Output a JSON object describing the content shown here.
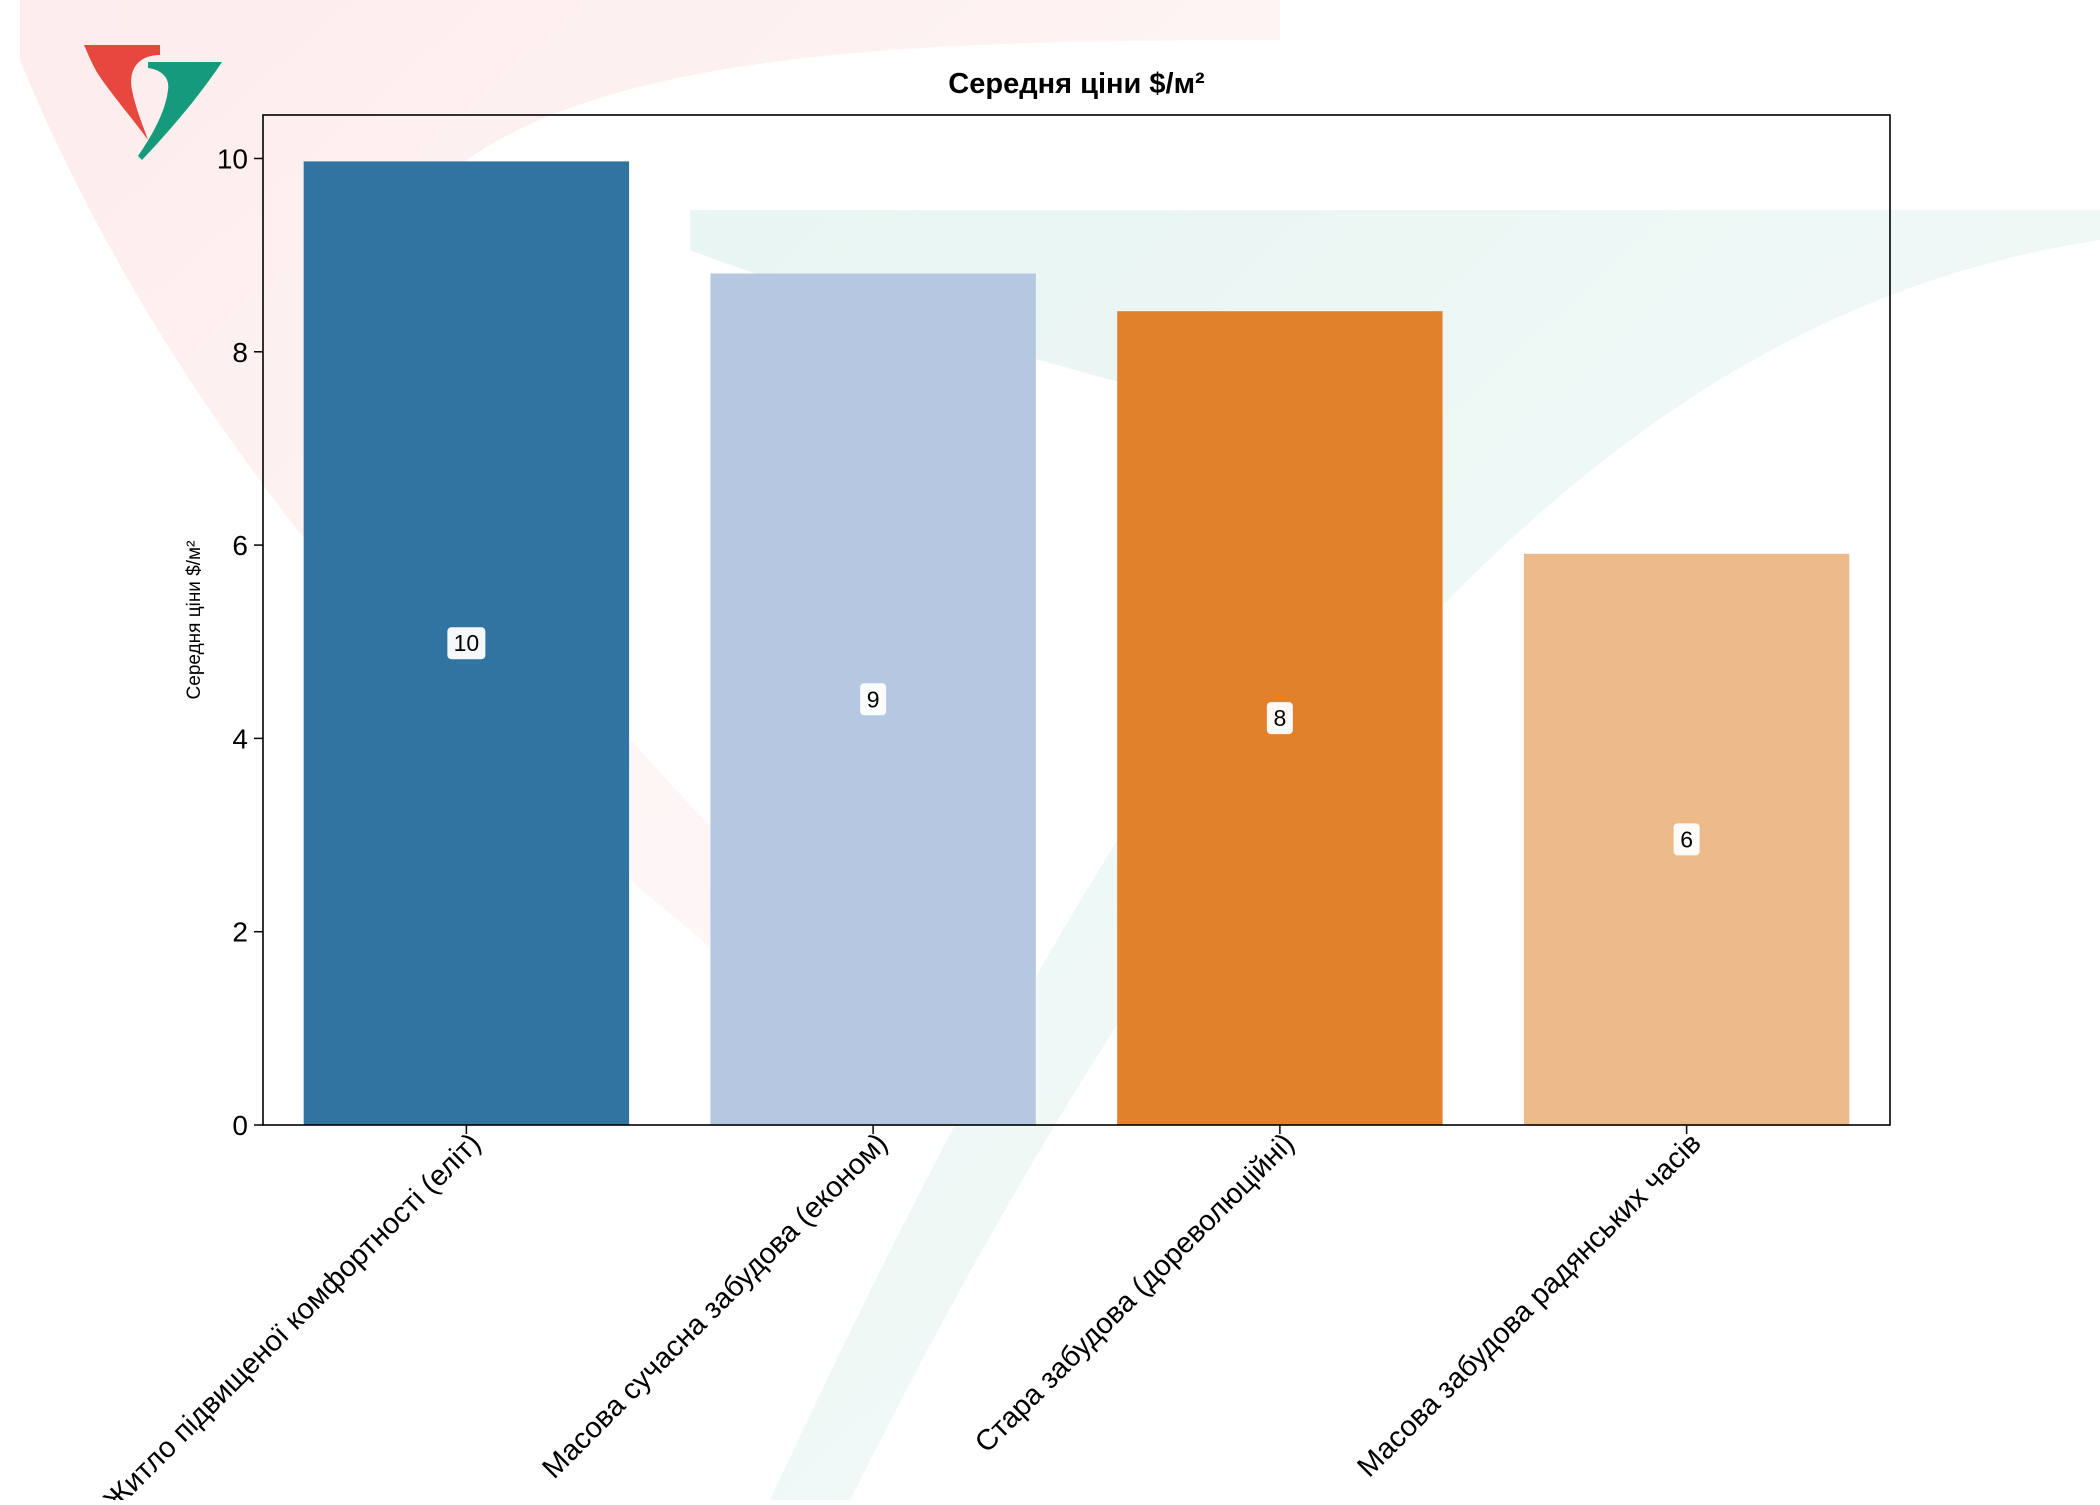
{
  "chart_data": {
    "type": "bar",
    "title": "Середня ціни $/м²",
    "ylabel": "Середня ціни $/м²",
    "xlabel": "",
    "categories": [
      "Житло підвищеної комфортності (еліт)",
      "Масова сучасна забудова (економ)",
      "Стара забудова (дореволюційні)",
      "Масова забудова радянських часів"
    ],
    "values": [
      9.97,
      8.81,
      8.42,
      5.91
    ],
    "data_labels": [
      "10",
      "9",
      "8",
      "6"
    ],
    "colors": [
      "#3274a1",
      "#b5c7e1",
      "#e1812c",
      "#edbb89"
    ],
    "ylim": [
      0,
      10.45
    ],
    "yticks": [
      0,
      2,
      4,
      6,
      8,
      10
    ],
    "grid": false,
    "legend": "none"
  },
  "watermark": {
    "logo": "stylized-v-logo-icon",
    "colors": {
      "red": "#e8473f",
      "green": "#169a7c"
    }
  }
}
